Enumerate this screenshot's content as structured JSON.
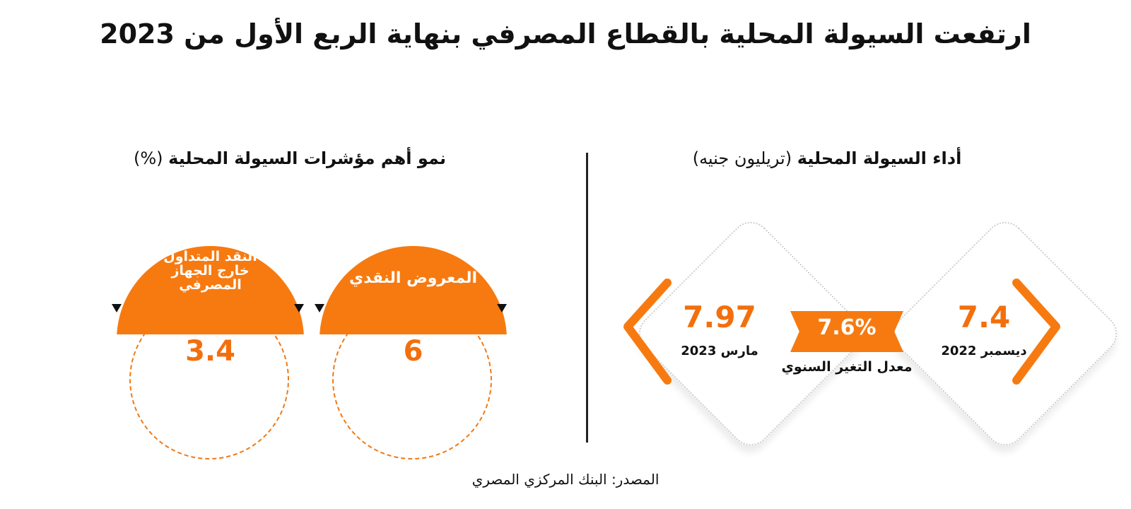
{
  "title": "ارتفعت السيولة المحلية بالقطاع المصرفي بنهاية الربع الأول من 2023",
  "left_section": {
    "title_bold": "نمو أهم مؤشرات السيولة المحلية",
    "title_note": "(%)",
    "items": [
      {
        "label": "المعروض النقدي",
        "value": "6"
      },
      {
        "label": "النقد المتداول خارج الجهاز المصرفي",
        "value": "3.4"
      }
    ]
  },
  "right_section": {
    "title_bold": "أداء السيولة المحلية",
    "title_note": "(تريليون جنيه)",
    "dec": {
      "value": "7.4",
      "label": "ديسمبر 2022"
    },
    "mar": {
      "value": "7.97",
      "label": "مارس 2023"
    },
    "change": {
      "value": "7.6%",
      "label": "معدل التغير السنوي"
    }
  },
  "footer": "المصدر: البنك المركزي المصري",
  "colors": {
    "accent": "#f77a10",
    "text": "#111111",
    "divider": "#222222"
  }
}
